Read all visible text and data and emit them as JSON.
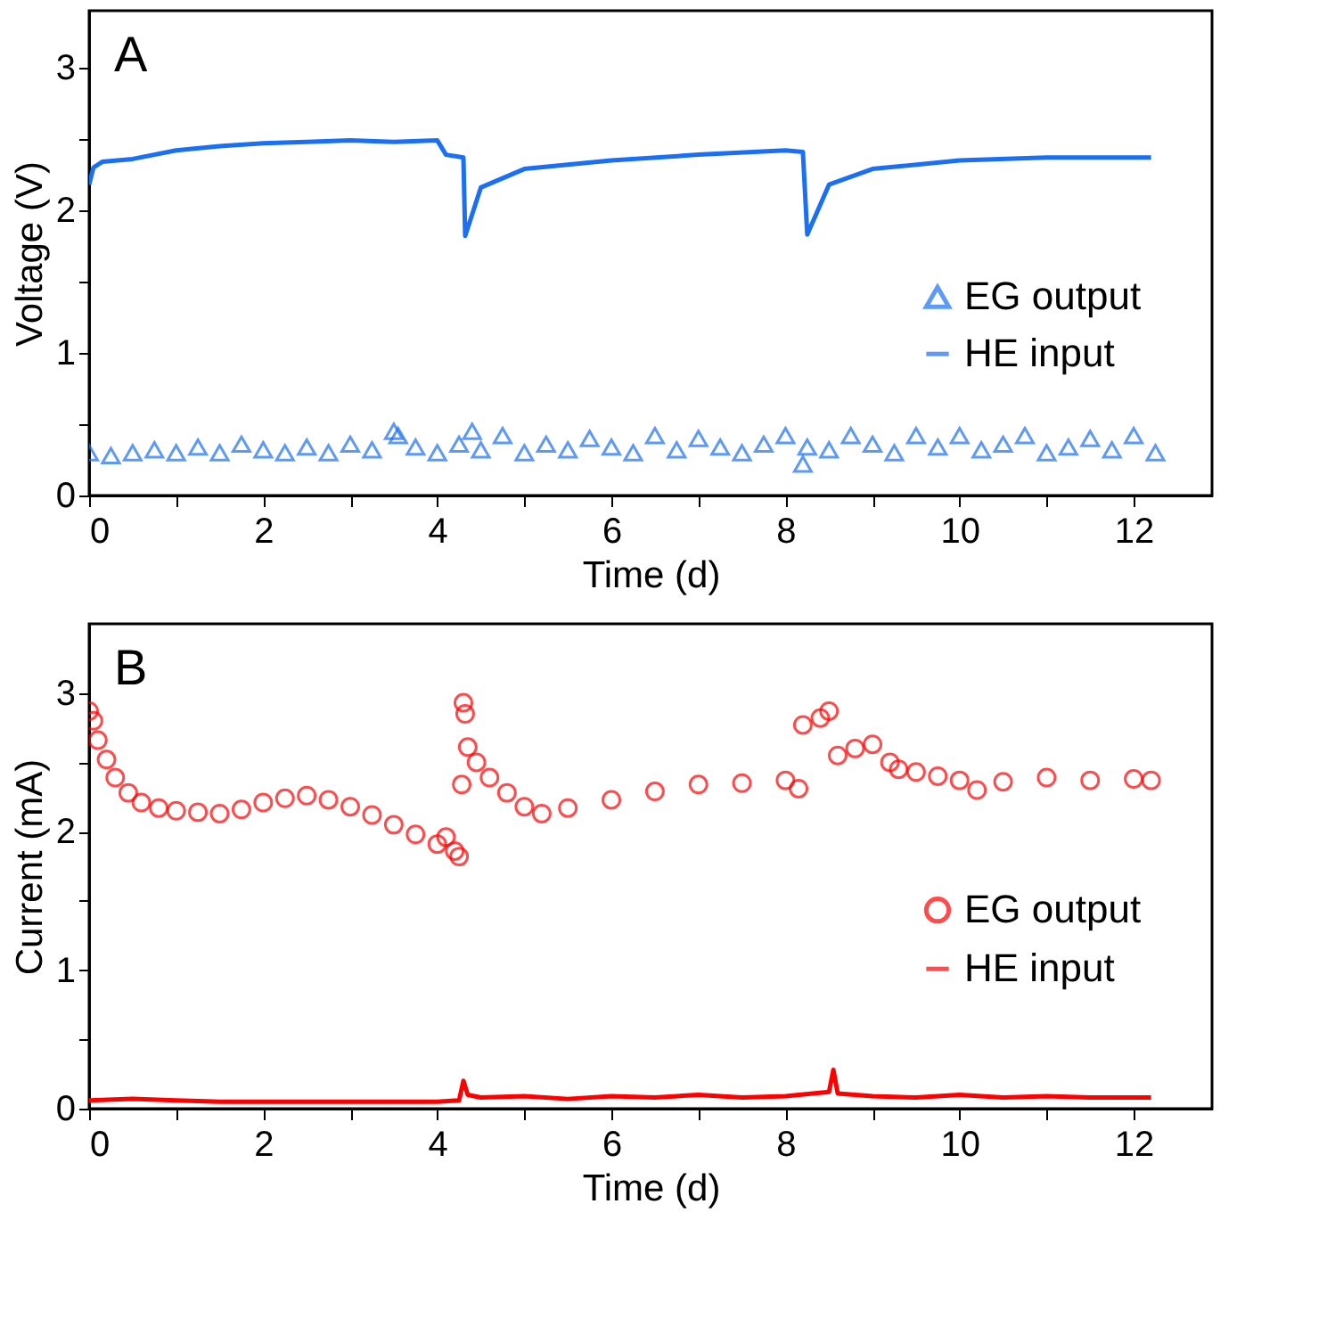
{
  "chart_data": [
    {
      "type": "line",
      "annotations": [
        "A"
      ],
      "xlabel": "Time (d)",
      "ylabel": "Voltage (V)",
      "xlim": [
        0,
        12.9
      ],
      "ylim": [
        0,
        3.4
      ],
      "xticks": [
        0,
        {
          "value": 1,
          "label": null
        },
        2,
        {
          "value": 3,
          "label": null
        },
        4,
        {
          "value": 5,
          "label": null
        },
        6,
        {
          "value": 7,
          "label": null
        },
        8,
        {
          "value": 9,
          "label": null
        },
        10,
        {
          "value": 11,
          "label": null
        },
        12
      ],
      "yticks": [
        0,
        {
          "value": 0.5,
          "label": null
        },
        1,
        {
          "value": 1.5,
          "label": null
        },
        2,
        {
          "value": 2.5,
          "label": null
        },
        3
      ],
      "grid": false,
      "legend": "right",
      "series": [
        {
          "name": "EG output",
          "type": "scatter",
          "marker": "triangle",
          "color": "#1a6ff5",
          "x": [
            0,
            0.25,
            0.5,
            0.75,
            1,
            1.25,
            1.5,
            1.75,
            2,
            2.25,
            2.5,
            2.75,
            3,
            3.25,
            3.5,
            3.55,
            3.75,
            4,
            4.25,
            4.4,
            4.5,
            4.75,
            5,
            5.25,
            5.5,
            5.75,
            6,
            6.25,
            6.5,
            6.75,
            7,
            7.25,
            7.5,
            7.75,
            8,
            8.2,
            8.25,
            8.5,
            8.75,
            9,
            9.25,
            9.5,
            9.75,
            10,
            10.25,
            10.5,
            10.75,
            11,
            11.25,
            11.5,
            11.75,
            12,
            12.25
          ],
          "values": [
            0.3,
            0.28,
            0.3,
            0.32,
            0.3,
            0.34,
            0.3,
            0.36,
            0.32,
            0.3,
            0.34,
            0.3,
            0.36,
            0.32,
            0.45,
            0.42,
            0.34,
            0.3,
            0.36,
            0.45,
            0.32,
            0.42,
            0.3,
            0.36,
            0.32,
            0.4,
            0.34,
            0.3,
            0.42,
            0.32,
            0.4,
            0.34,
            0.3,
            0.36,
            0.42,
            0.22,
            0.34,
            0.32,
            0.42,
            0.36,
            0.3,
            0.42,
            0.34,
            0.42,
            0.32,
            0.36,
            0.42,
            0.3,
            0.34,
            0.4,
            0.32,
            0.42,
            0.3
          ]
        },
        {
          "name": "HE input",
          "color": "#1a6ff5",
          "x": [
            0,
            0.05,
            0.15,
            0.5,
            1,
            1.5,
            2,
            2.5,
            3,
            3.5,
            4,
            4.1,
            4.3,
            4.32,
            4.5,
            5,
            6,
            7,
            8,
            8.2,
            8.25,
            8.5,
            9,
            10,
            11,
            12.2
          ],
          "values": [
            2.18,
            2.3,
            2.34,
            2.36,
            2.42,
            2.45,
            2.47,
            2.48,
            2.49,
            2.48,
            2.49,
            2.39,
            2.37,
            1.82,
            2.16,
            2.29,
            2.35,
            2.39,
            2.42,
            2.41,
            1.83,
            2.18,
            2.29,
            2.35,
            2.37,
            2.37
          ]
        }
      ]
    },
    {
      "type": "line",
      "annotations": [
        "B"
      ],
      "xlabel": "Time (d)",
      "ylabel": "Current (mA)",
      "xlim": [
        0,
        12.9
      ],
      "ylim": [
        0,
        3.5
      ],
      "xticks": [
        0,
        {
          "value": 1,
          "label": null
        },
        2,
        {
          "value": 3,
          "label": null
        },
        4,
        {
          "value": 5,
          "label": null
        },
        6,
        {
          "value": 7,
          "label": null
        },
        8,
        {
          "value": 9,
          "label": null
        },
        10,
        {
          "value": 11,
          "label": null
        },
        12
      ],
      "yticks": [
        0,
        {
          "value": 0.5,
          "label": null
        },
        1,
        {
          "value": 1.5,
          "label": null
        },
        2,
        {
          "value": 2.5,
          "label": null
        },
        3
      ],
      "grid": false,
      "legend": "right",
      "series": [
        {
          "name": "EG output",
          "type": "scatter",
          "marker": "circle",
          "color": "#ff0000",
          "x": [
            0,
            0.05,
            0.1,
            0.2,
            0.3,
            0.45,
            0.6,
            0.8,
            1,
            1.25,
            1.5,
            1.75,
            2,
            2.25,
            2.5,
            2.75,
            3,
            3.25,
            3.5,
            3.75,
            4,
            4.1,
            4.2,
            4.25,
            4.28,
            4.3,
            4.32,
            4.35,
            4.45,
            4.6,
            4.8,
            5,
            5.2,
            5.5,
            6,
            6.5,
            7,
            7.5,
            8,
            8.15,
            8.2,
            8.4,
            8.5,
            8.6,
            8.8,
            9,
            9.2,
            9.3,
            9.5,
            9.75,
            10,
            10.2,
            10.5,
            11,
            11.5,
            12,
            12.2
          ],
          "values": [
            2.87,
            2.8,
            2.66,
            2.52,
            2.39,
            2.28,
            2.21,
            2.17,
            2.15,
            2.14,
            2.13,
            2.16,
            2.21,
            2.24,
            2.26,
            2.23,
            2.18,
            2.12,
            2.05,
            1.98,
            1.91,
            1.96,
            1.86,
            1.82,
            2.34,
            2.93,
            2.85,
            2.61,
            2.5,
            2.39,
            2.28,
            2.18,
            2.13,
            2.17,
            2.23,
            2.29,
            2.34,
            2.35,
            2.37,
            2.31,
            2.77,
            2.82,
            2.87,
            2.55,
            2.6,
            2.63,
            2.5,
            2.45,
            2.43,
            2.4,
            2.37,
            2.3,
            2.36,
            2.39,
            2.37,
            2.38,
            2.37
          ]
        },
        {
          "name": "HE input",
          "color": "#ff0000",
          "x": [
            0,
            0.5,
            1,
            1.5,
            2,
            2.5,
            3,
            3.5,
            4,
            4.25,
            4.3,
            4.35,
            4.5,
            5,
            5.5,
            6,
            6.5,
            7,
            7.5,
            8,
            8.5,
            8.55,
            8.6,
            9,
            9.5,
            10,
            10.5,
            11,
            11.5,
            12.2
          ],
          "values": [
            0.06,
            0.07,
            0.06,
            0.05,
            0.05,
            0.05,
            0.05,
            0.05,
            0.05,
            0.06,
            0.2,
            0.1,
            0.08,
            0.09,
            0.07,
            0.09,
            0.08,
            0.1,
            0.08,
            0.09,
            0.12,
            0.28,
            0.11,
            0.09,
            0.08,
            0.1,
            0.08,
            0.09,
            0.08,
            0.08
          ]
        }
      ]
    }
  ]
}
